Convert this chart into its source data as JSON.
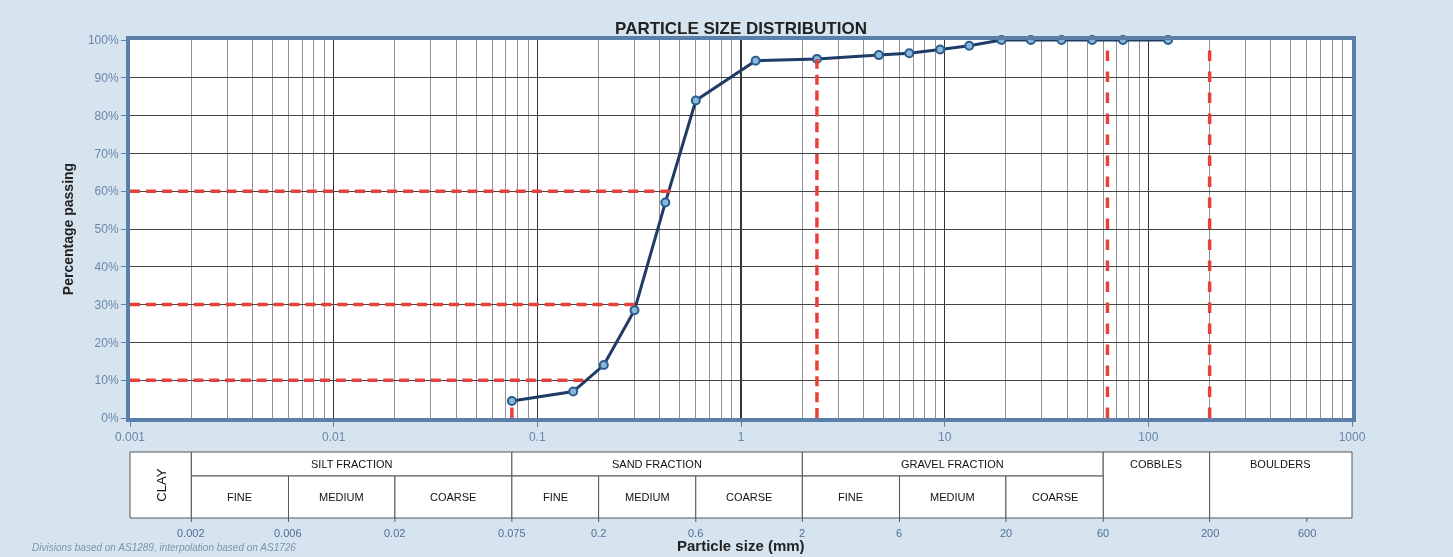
{
  "chart_data": [
    {
      "type": "line",
      "title": "PARTICLE SIZE DISTRIBUTION",
      "ylabel": "Percentage passing",
      "log": "x",
      "grid": true,
      "xlim": [
        0.001,
        1000
      ],
      "xticks": [
        0.001,
        0.01,
        0.1,
        1,
        10,
        100,
        1000
      ],
      "ylim": [
        0,
        100
      ],
      "yticks": [
        {
          "value": 0,
          "label": "0%"
        },
        {
          "value": 10,
          "label": "10%"
        },
        {
          "value": 20,
          "label": "20%"
        },
        {
          "value": 30,
          "label": "30%"
        },
        {
          "value": 40,
          "label": "40%"
        },
        {
          "value": 50,
          "label": "50%"
        },
        {
          "value": 60,
          "label": "60%"
        },
        {
          "value": 70,
          "label": "70%"
        },
        {
          "value": 80,
          "label": "80%"
        },
        {
          "value": 90,
          "label": "90%"
        },
        {
          "value": 100,
          "label": "100%"
        }
      ],
      "series": [
        {
          "color": "#1f3b66",
          "marker": "circle",
          "line_style": "solid",
          "x": [
            0.075,
            0.15,
            0.212,
            0.3,
            0.425,
            0.6,
            1.18,
            2.36,
            4.75,
            6.7,
            9.5,
            13.2,
            19,
            26.5,
            37.5,
            53,
            75,
            125
          ],
          "values": [
            4.5,
            7,
            14,
            28.5,
            57,
            84,
            94.5,
            95,
            96,
            96.5,
            97.5,
            98.5,
            100,
            100,
            100,
            100,
            100,
            100
          ]
        },
        {
          "color": "#e8403a",
          "marker": "none",
          "line_style": "dashed",
          "x": [
            0.001,
            0.168
          ],
          "values": [
            10,
            10
          ]
        },
        {
          "color": "#e8403a",
          "marker": "none",
          "line_style": "dashed",
          "x": [
            0.001,
            0.3
          ],
          "values": [
            30,
            30
          ]
        },
        {
          "color": "#e8403a",
          "marker": "none",
          "line_style": "dashed",
          "x": [
            0.001,
            0.45
          ],
          "values": [
            60,
            60
          ]
        },
        {
          "color": "#e8403a",
          "marker": "none",
          "line_style": "dashed",
          "x": [
            0.075,
            0.075
          ],
          "values": [
            0,
            4.5
          ]
        },
        {
          "color": "#e8403a",
          "marker": "none",
          "line_style": "dashed",
          "x": [
            2.36,
            2.36
          ],
          "values": [
            0,
            95
          ]
        }
      ],
      "ref_lines": [
        {
          "axis": "x",
          "value": 63,
          "color": "#e8403a",
          "line_style": "dashed"
        },
        {
          "axis": "x",
          "value": 200,
          "color": "#e8403a",
          "line_style": "dashed"
        }
      ]
    },
    {
      "type": "other",
      "annotations": [
        "CLAY",
        "SILT FRACTION",
        "SAND FRACTION",
        "GRAVEL FRACTION",
        "COBBLES",
        "BOULDERS",
        "FINE",
        "MEDIUM",
        "COARSE",
        "FINE",
        "MEDIUM",
        "COARSE",
        "FINE",
        "MEDIUM",
        "COARSE",
        "0.002",
        "0.006",
        "0.02",
        "0.075",
        "0.2",
        "0.6",
        "2",
        "6",
        "20",
        "60",
        "200",
        "600",
        "Divisions based on AS1289, interpolation based on AS1726",
        "Particle size (mm)"
      ]
    }
  ]
}
